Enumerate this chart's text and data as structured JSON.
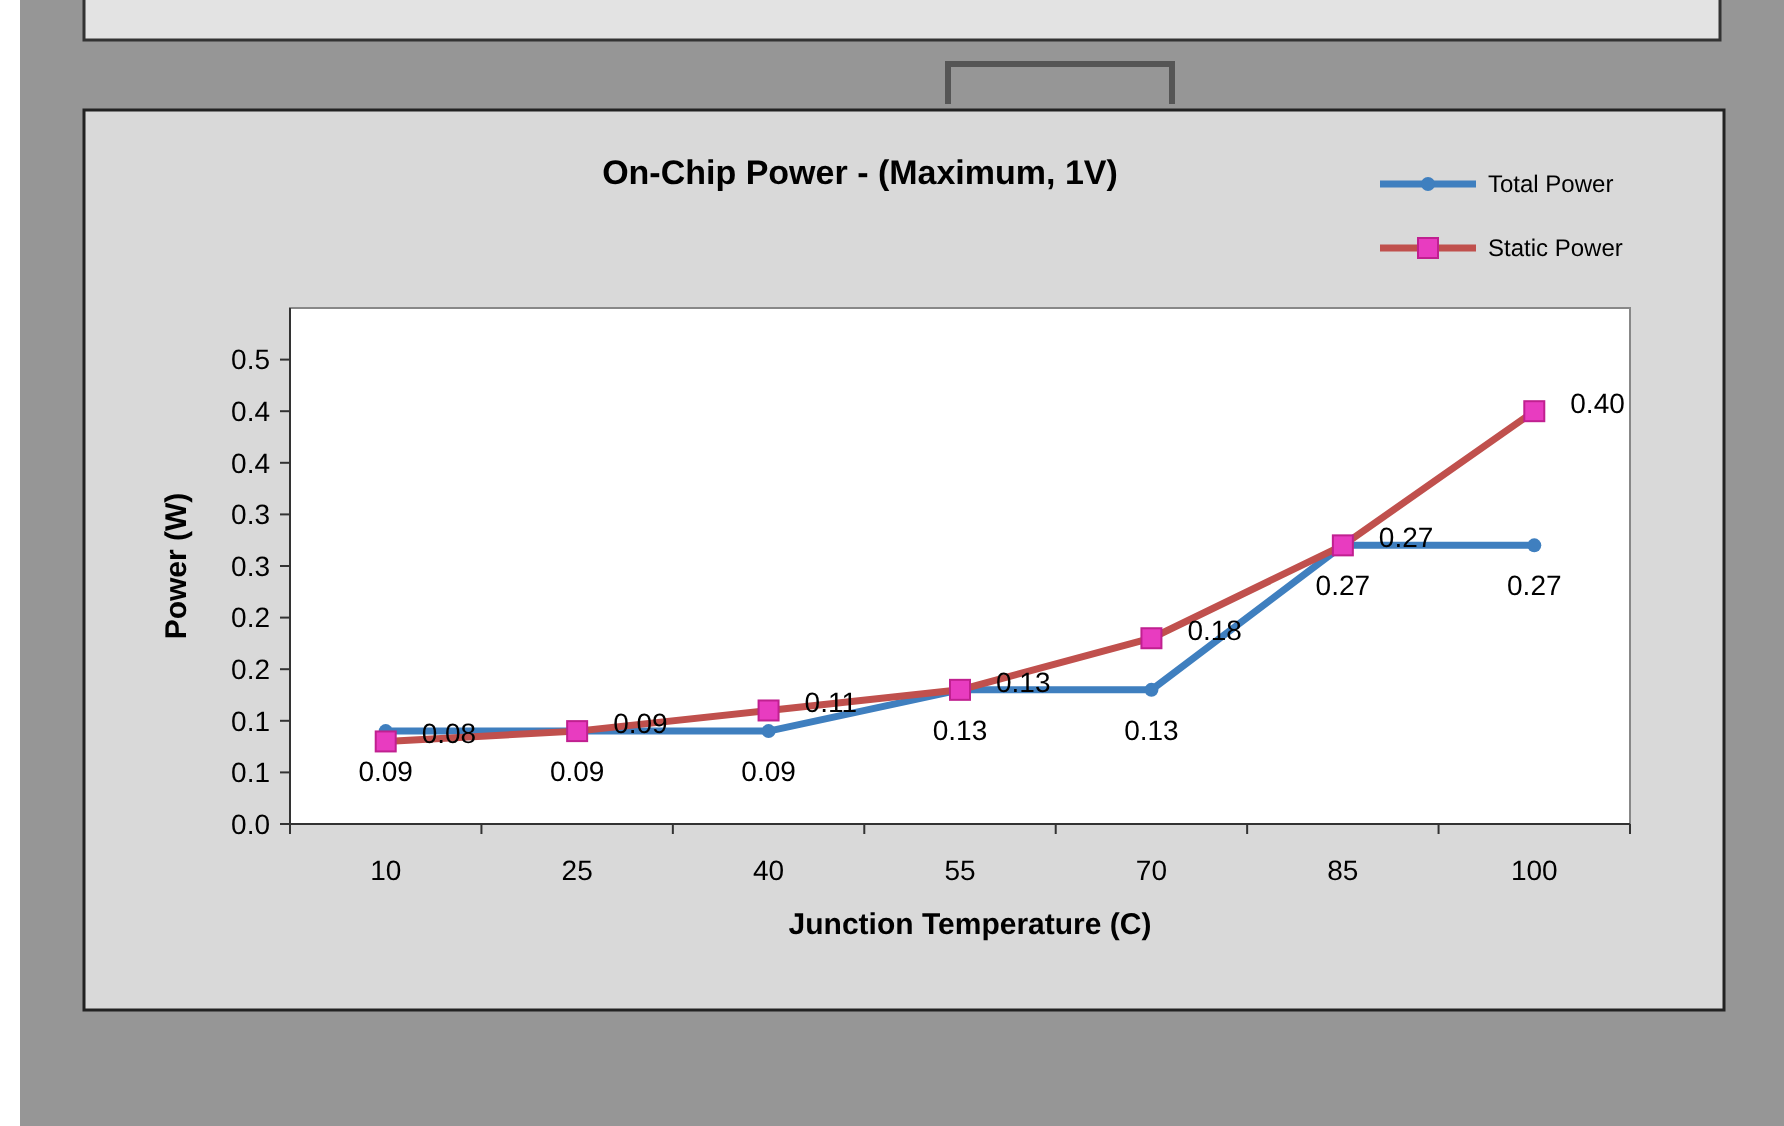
{
  "chart_data": {
    "type": "line",
    "title": "On-Chip Power - (Maximum, 1V)",
    "xlabel": "Junction Temperature (C)",
    "ylabel": "Power (W)",
    "categories": [
      "10",
      "25",
      "40",
      "55",
      "70",
      "85",
      "100"
    ],
    "series": [
      {
        "name": "Total Power",
        "color": "#3f7fbf",
        "marker": "circle",
        "values": [
          0.09,
          0.09,
          0.09,
          0.13,
          0.13,
          0.27,
          0.27
        ],
        "value_labels": [
          "0.09",
          "0.09",
          "0.09",
          "0.13",
          "0.13",
          "0.27",
          "0.27"
        ]
      },
      {
        "name": "Static Power",
        "color": "#c0504d",
        "marker": "square",
        "values": [
          0.08,
          0.09,
          0.11,
          0.13,
          0.18,
          0.27,
          0.4
        ],
        "value_labels": [
          "0.08",
          "0.09",
          "0.11",
          "0.13",
          "0.18",
          "0.27",
          "0.40"
        ]
      }
    ],
    "ylim": [
      0,
      0.5
    ],
    "yticks": [
      {
        "value": 0,
        "label": "0.0"
      },
      {
        "value": 0.05,
        "label": "0.1"
      },
      {
        "value": 0.1,
        "label": "0.1"
      },
      {
        "value": 0.15,
        "label": "0.2"
      },
      {
        "value": 0.2,
        "label": "0.2"
      },
      {
        "value": 0.25,
        "label": "0.3"
      },
      {
        "value": 0.3,
        "label": "0.3"
      },
      {
        "value": 0.35,
        "label": "0.4"
      },
      {
        "value": 0.4,
        "label": "0.4"
      },
      {
        "value": 0.45,
        "label": "0.5"
      }
    ],
    "legend": "top right",
    "grid": false,
    "line_style": "solid"
  }
}
